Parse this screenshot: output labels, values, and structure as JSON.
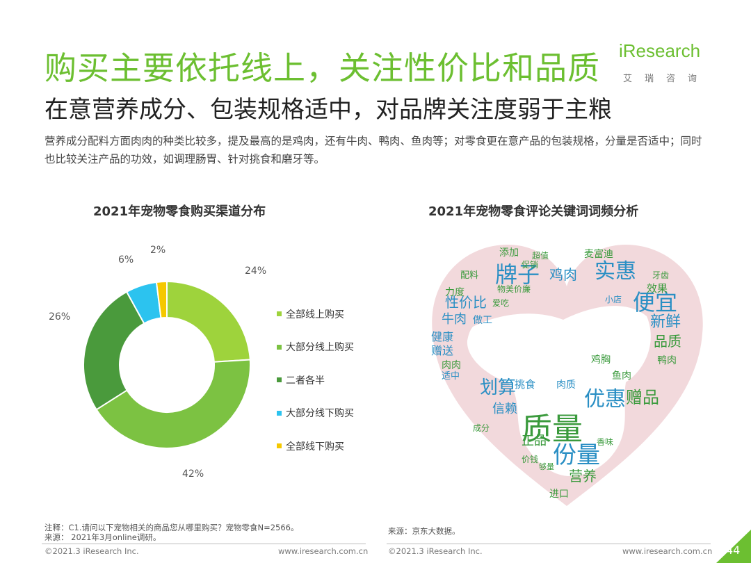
{
  "header": {
    "title": "购买主要依托线上，关注性价比和品质",
    "subtitle": "在意营养成分、包装规格适中，对品牌关注度弱于主粮",
    "description": "营养成分配料方面肉肉的种类比较多，提及最高的是鸡肉，还有牛肉、鸭肉、鱼肉等；对零食更在意产品的包装规格，分量是否适中；同时也比较关注产品的功效，如调理肠胃、针对挑食和磨牙等。"
  },
  "logo": {
    "main": "iResearch",
    "sub": "艾瑞咨询"
  },
  "colors": {
    "accent": "#6cbf31",
    "logo_bar": "#d7ef4a"
  },
  "chart_data": [
    {
      "type": "pie",
      "title": "2021年宠物零食购买渠道分布",
      "categories": [
        "全部线上购买",
        "大部分线上购买",
        "二者各半",
        "大部分线下购买",
        "全部线下购买"
      ],
      "values": [
        24,
        42,
        26,
        6,
        2
      ],
      "labels": [
        "24%",
        "42%",
        "26%",
        "6%",
        "2%"
      ],
      "colors": [
        "#9ed33c",
        "#7cc242",
        "#4a9a3c",
        "#2cc3ef",
        "#f5c800"
      ],
      "donut": true,
      "legend": "right"
    },
    {
      "type": "wordcloud",
      "title": "2021年宠物零食评论关键词词频分析",
      "words": [
        "质量",
        "份量",
        "优惠",
        "划算",
        "实惠",
        "牌子",
        "便宜",
        "赠品",
        "新鲜",
        "品质",
        "性价比",
        "营养",
        "信赖",
        "正品",
        "牛肉",
        "鸡肉",
        "健康",
        "赠送",
        "鸡胸",
        "挑食",
        "肉质",
        "效果",
        "添加",
        "超值",
        "配料",
        "力度",
        "适中",
        "成分",
        "价钱",
        "进口",
        "麦富迪",
        "牙齿",
        "小店",
        "鸭肉",
        "肉肉",
        "做工",
        "鱼肉",
        "香味",
        "促销",
        "爱吃",
        "物美价廉",
        "够量"
      ]
    }
  ],
  "footer": {
    "note_line1": "注释：C1.请问以下宠物相关的商品您从哪里购买？宠物零食N=2566。",
    "note_line2": "来源： 2021年3月online调研。",
    "source_right": "来源：京东大数据。",
    "copyright_left": "©2021.3 iResearch Inc.",
    "url_left": "www.iresearch.com.cn",
    "copyright_right": "©2021.3 iResearch Inc.",
    "url_right": "www.iresearch.com.cn",
    "page_number": "44"
  }
}
